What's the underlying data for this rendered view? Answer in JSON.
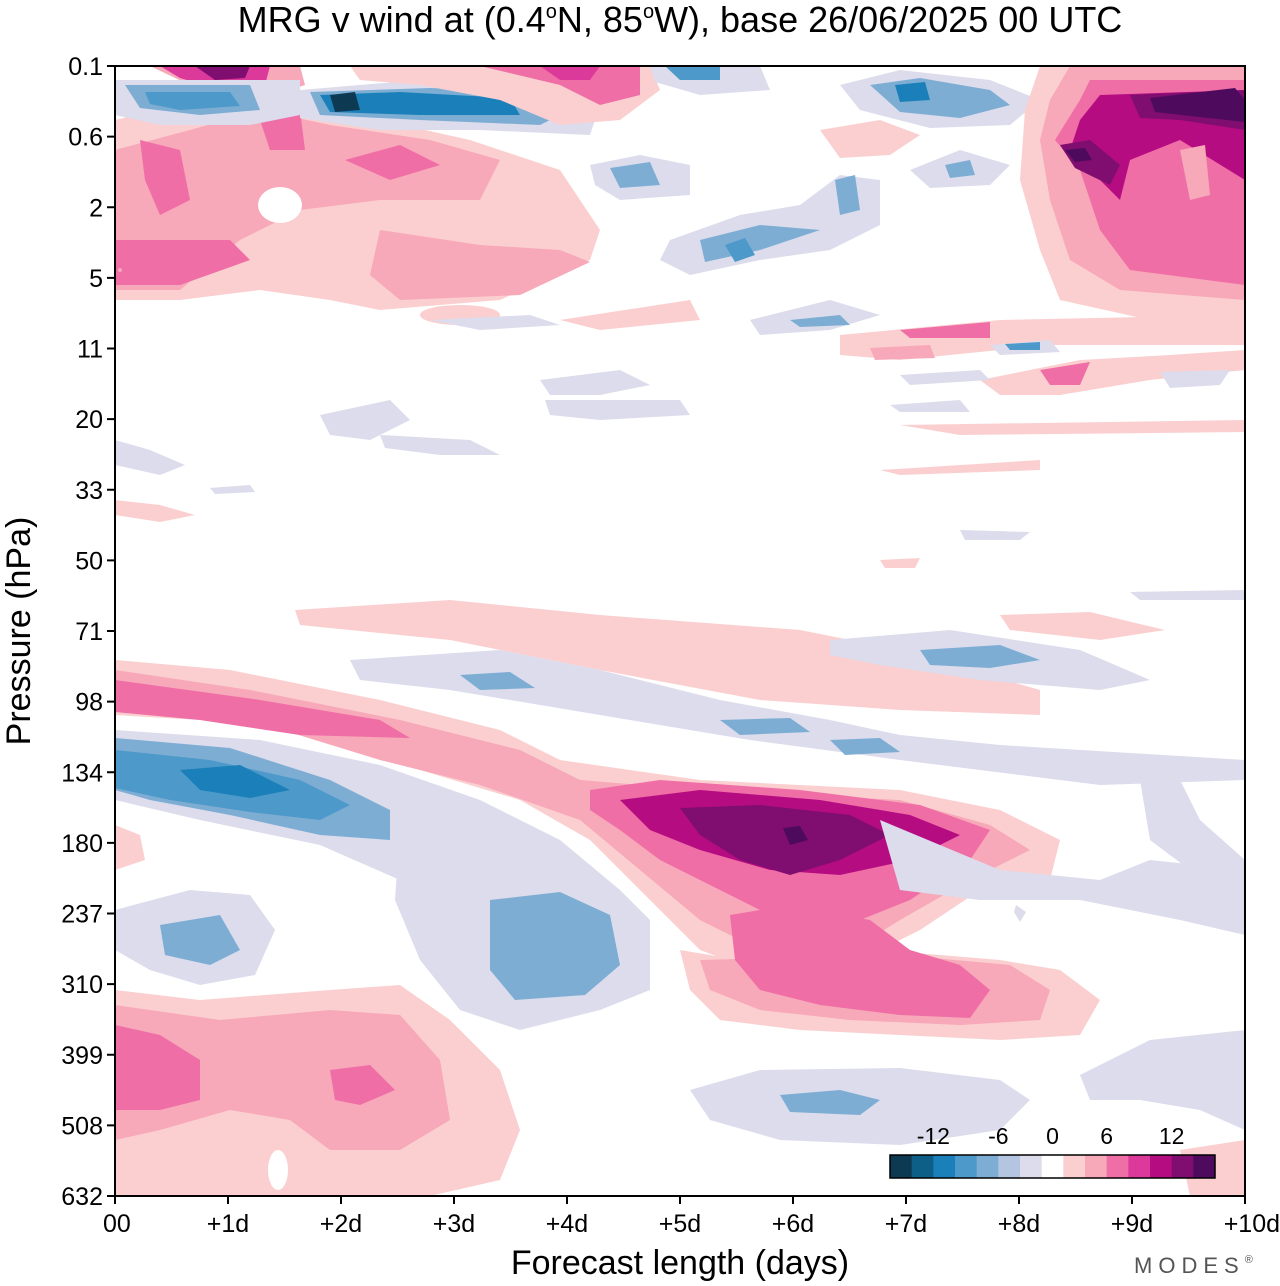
{
  "chart_data": {
    "type": "heatmap",
    "title": "MRG v wind at (0.4°N, 85°W),  base 26/06/2025  00 UTC",
    "title_parts": {
      "lead": "MRG v wind at (0.4",
      "deg1": "o",
      "mid": "N, 85",
      "deg2": "o",
      "tail": "W),  base 26/06/2025  00 UTC"
    },
    "xlabel": "Forecast length (days)",
    "ylabel": "Pressure (hPa)",
    "xlim": [
      0,
      10
    ],
    "x_ticks": [
      0,
      1,
      2,
      3,
      4,
      5,
      6,
      7,
      8,
      9,
      10
    ],
    "x_tick_labels": [
      "00",
      "+1d",
      "+2d",
      "+3d",
      "+4d",
      "+5d",
      "+6d",
      "+7d",
      "+8d",
      "+9d",
      "+10d"
    ],
    "y_ticks": [
      0.1,
      0.6,
      2,
      5,
      11,
      20,
      33,
      50,
      71,
      98,
      134,
      180,
      237,
      310,
      399,
      508,
      632
    ],
    "y_tick_labels": [
      "0.1",
      "0.6",
      "2",
      "5",
      "11",
      "20",
      "33",
      "50",
      "71",
      "98",
      "134",
      "180",
      "237",
      "310",
      "399",
      "508",
      "632"
    ],
    "y_scale": "pressure levels (evenly spaced)",
    "grid": false,
    "colorbar": {
      "placement": "bottom-right",
      "levels": [
        -14,
        -12,
        -10,
        -8,
        -6,
        -4,
        -2,
        2,
        4,
        6,
        8,
        10,
        12,
        14
      ],
      "labels": [
        "-12",
        "-6",
        "0",
        "6",
        "12"
      ],
      "label_values": [
        -12,
        -6,
        0,
        6,
        12
      ],
      "colors": [
        "#0d3a52",
        "#0e5f87",
        "#1b80b9",
        "#4d99c9",
        "#7eadd4",
        "#b3c5e0",
        "#dcdcec",
        "#ffffff",
        "#fbcfcf",
        "#f7a8b9",
        "#ef6ea6",
        "#dc3a9a",
        "#b60c82",
        "#800d70",
        "#4e0b5e"
      ]
    },
    "features": [
      {
        "day": 6.0,
        "pressure": 180,
        "value": 15,
        "kind": "maximum"
      },
      {
        "day": 5.3,
        "pressure": 180,
        "value": 12,
        "kind": "positive"
      },
      {
        "day": 7.2,
        "pressure": 310,
        "value": 8,
        "kind": "positive"
      },
      {
        "day": 1.3,
        "pressure": 134,
        "value": -10,
        "kind": "minimum"
      },
      {
        "day": 1.0,
        "pressure": 237,
        "value": -6,
        "kind": "negative"
      },
      {
        "day": 3.5,
        "pressure": 237,
        "value": -5,
        "kind": "negative"
      },
      {
        "day": 2.5,
        "pressure": 98,
        "value": 6,
        "kind": "positive"
      },
      {
        "day": 0.5,
        "pressure": 399,
        "value": 8,
        "kind": "positive"
      },
      {
        "day": 2.0,
        "pressure": 399,
        "value": 9,
        "kind": "positive"
      },
      {
        "day": 6.0,
        "pressure": 508,
        "value": -5,
        "kind": "negative"
      },
      {
        "day": 7.5,
        "pressure": 71,
        "value": -4,
        "kind": "negative"
      },
      {
        "day": 9.6,
        "pressure": 0.3,
        "value": 16,
        "kind": "maximum"
      },
      {
        "day": 8.7,
        "pressure": 1,
        "value": 14,
        "kind": "maximum"
      },
      {
        "day": 2.2,
        "pressure": 0.3,
        "value": -14,
        "kind": "minimum"
      },
      {
        "day": 1.0,
        "pressure": 0.1,
        "value": 14,
        "kind": "maximum"
      },
      {
        "day": 5.5,
        "pressure": 4,
        "value": -6,
        "kind": "negative"
      },
      {
        "day": 7.0,
        "pressure": 0.3,
        "value": -9,
        "kind": "negative"
      }
    ]
  },
  "branding": {
    "watermark": "MODES",
    "watermark_mark": "®"
  }
}
